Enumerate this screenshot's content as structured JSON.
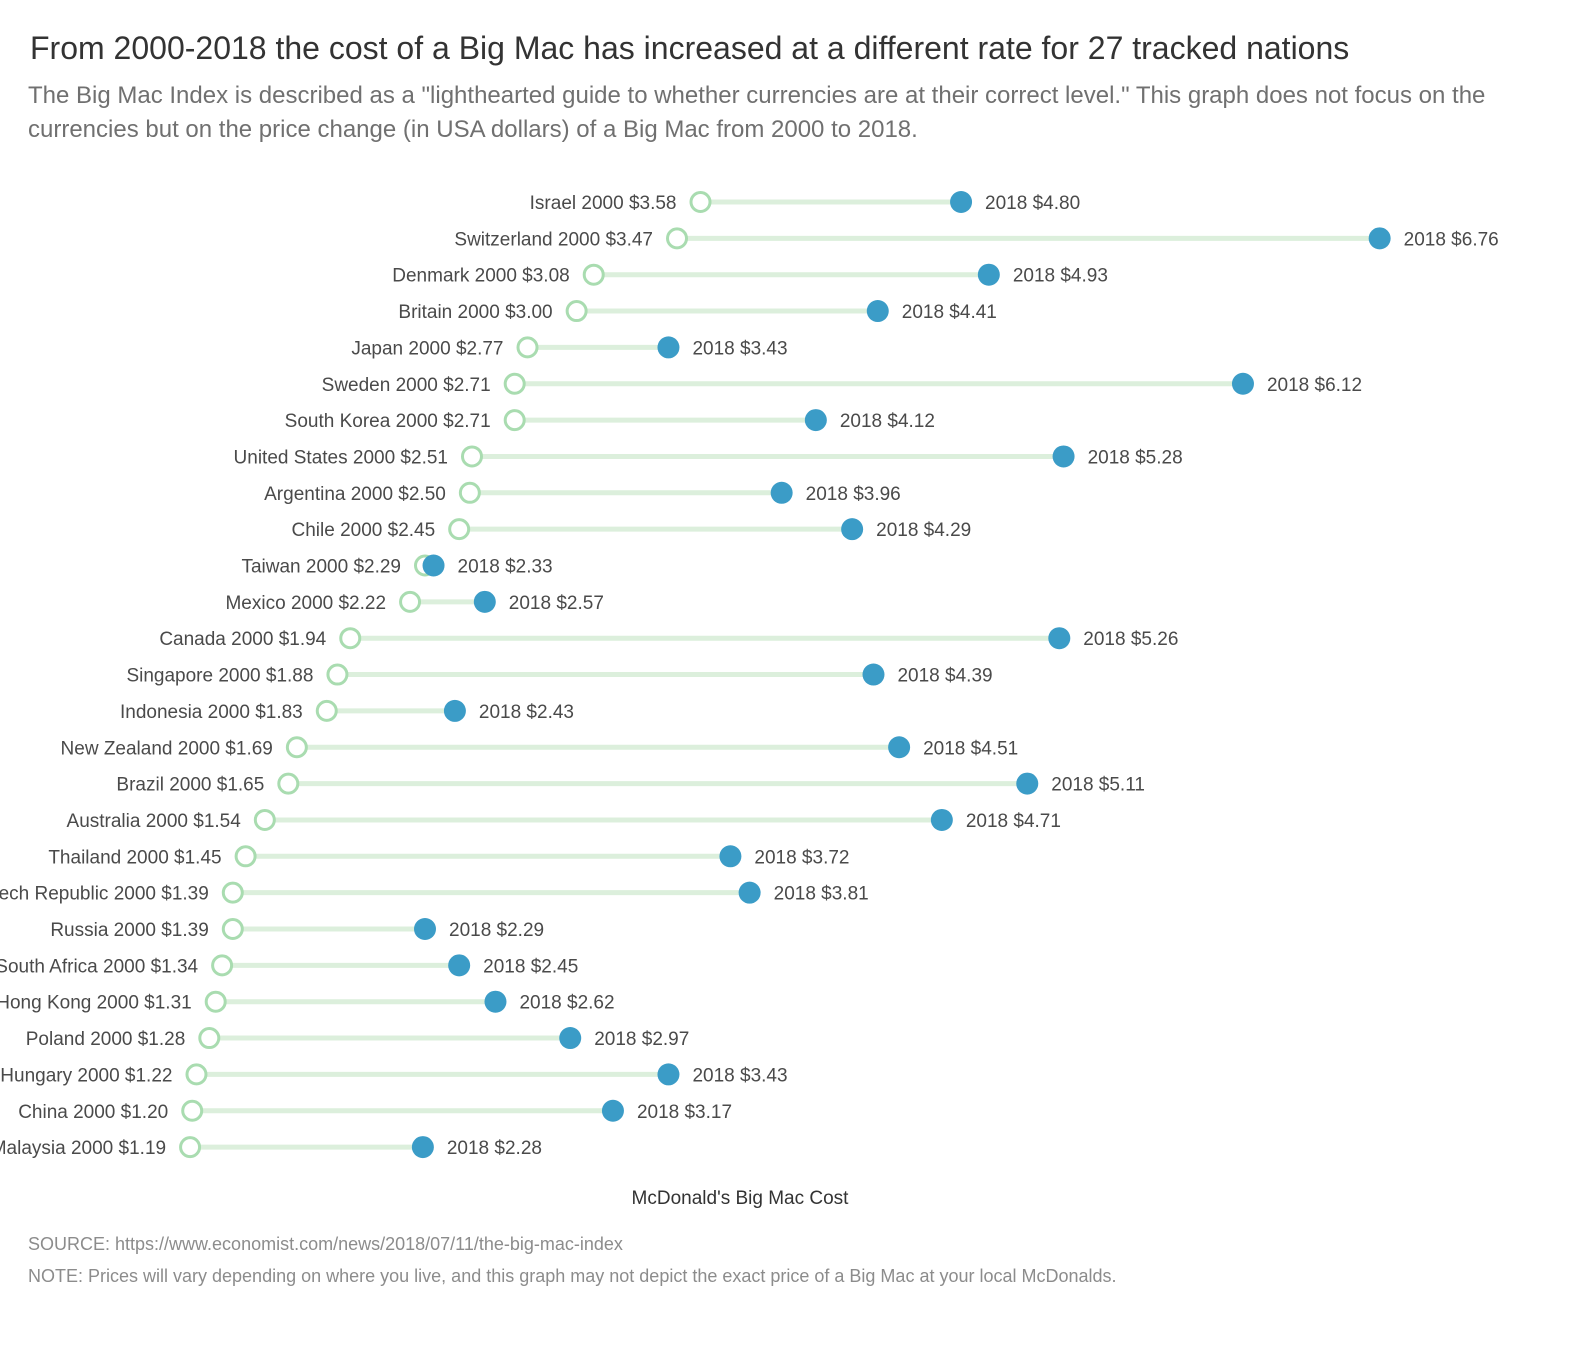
{
  "chart_data": {
    "type": "dumbbell",
    "title": "From 2000-2018 the cost of a Big Mac has increased at a different rate for 27 tracked nations",
    "subtitle": "The Big Mac Index is described as a \"lighthearted guide to whether currencies are at their correct level.\" This graph does not focus on the currencies but on the price change (in USA dollars) of a Big Mac from 2000 to 2018.",
    "xlabel": "McDonald's Big Mac Cost",
    "start_year": "2000",
    "end_year": "2018",
    "currency_symbol": "$",
    "series": [
      {
        "name": "2000",
        "style": "hollow-circle"
      },
      {
        "name": "2018",
        "style": "filled-circle"
      }
    ],
    "categories": [
      "Israel",
      "Switzerland",
      "Denmark",
      "Britain",
      "Japan",
      "Sweden",
      "South Korea",
      "United States",
      "Argentina",
      "Chile",
      "Taiwan",
      "Mexico",
      "Canada",
      "Singapore",
      "Indonesia",
      "New Zealand",
      "Brazil",
      "Australia",
      "Thailand",
      "Czech Republic",
      "Russia",
      "South Africa",
      "Hong Kong",
      "Poland",
      "Hungary",
      "China",
      "Malaysia"
    ],
    "values_2000": [
      3.58,
      3.47,
      3.08,
      3.0,
      2.77,
      2.71,
      2.71,
      2.51,
      2.5,
      2.45,
      2.29,
      2.22,
      1.94,
      1.88,
      1.83,
      1.69,
      1.65,
      1.54,
      1.45,
      1.39,
      1.39,
      1.34,
      1.31,
      1.28,
      1.22,
      1.2,
      1.19
    ],
    "values_2018": [
      4.8,
      6.76,
      4.93,
      4.41,
      3.43,
      6.12,
      4.12,
      5.28,
      3.96,
      4.29,
      2.33,
      2.57,
      5.26,
      4.39,
      2.43,
      4.51,
      5.11,
      4.71,
      3.72,
      3.81,
      2.29,
      2.45,
      2.62,
      2.97,
      3.43,
      3.17,
      2.28
    ],
    "xlim": [
      0.3,
      7.67
    ],
    "colors": {
      "connector": "#dcefdc",
      "start_stroke": "#a9dcb0",
      "end_fill": "#3b9cc7"
    }
  },
  "footer": {
    "source": "SOURCE: https://www.economist.com/news/2018/07/11/the-big-mac-index",
    "note": "NOTE: Prices will vary depending on where you live, and this graph may not depict the exact price of a Big Mac at your local McDonalds."
  }
}
